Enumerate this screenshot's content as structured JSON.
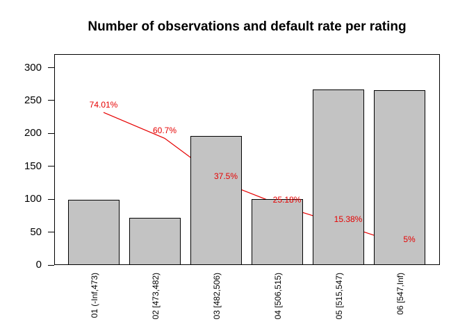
{
  "chart_data": {
    "type": "bar",
    "title": "Number of observations and default rate per rating",
    "categories": [
      "01 (-Inf,473)",
      "02 [473,482)",
      "03 [482,506)",
      "04 [506,515)",
      "05 [515,547)",
      "06 [547,Inf)"
    ],
    "series": [
      {
        "name": "Number of observations",
        "type": "bar",
        "values": [
          99,
          72,
          196,
          100,
          267,
          266
        ]
      },
      {
        "name": "Default rate",
        "type": "line",
        "values": [
          74.01,
          60.7,
          37.5,
          25.18,
          15.38,
          5
        ],
        "labels": [
          "74.01%",
          "60.7%",
          "37.5%",
          "25.18%",
          "15.38%",
          "5%"
        ]
      }
    ],
    "xlabel": "",
    "ylabel": "",
    "ylim": [
      0,
      300
    ],
    "y_ticks": [
      0,
      50,
      100,
      150,
      200,
      250,
      300
    ],
    "grid": false,
    "legend": "none",
    "colors": {
      "bar_fill": "#c3c3c3",
      "bar_border": "#000000",
      "line": "#e60000",
      "rate_label": "#e60000",
      "axis": "#000000"
    }
  }
}
